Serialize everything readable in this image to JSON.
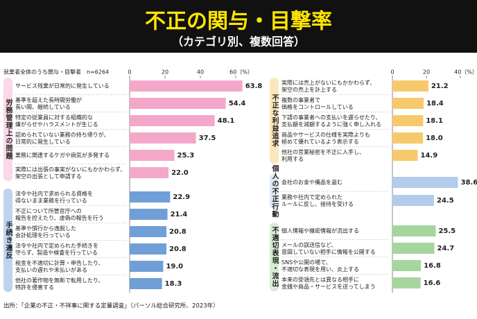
{
  "header": {
    "title": "不正の関与・目撃率",
    "subtitle": "（カテゴリ別、複数回答）"
  },
  "source": "出所：「企業の不正・不祥事に関する定量調査」（パーソル総合研究所、2023年）",
  "chart_data": [
    {
      "type": "bar",
      "orientation": "horizontal",
      "note": "就業者全体のうち関与・目撃者　n=6264",
      "xlim": [
        0,
        60
      ],
      "xticks": [
        0,
        20,
        40,
        {
          "value": 60,
          "label": "60（%）"
        }
      ],
      "groups": [
        {
          "name": "労務管理上の問題",
          "color": "#f4a8c9",
          "categories": [
            "サービス残業が日常的に発生している",
            "基準を超えた長時間労働が\n長い間、継続している",
            "特定の従業員に対する組織的な\n嫌がらせやハラスメントが生じる",
            "認められていない業務の持ち帰りが、\n日常的に発生している",
            "業務に関連するケガや病気が多発する",
            "実際には出張の事実がないにもかかわらず、\n架空の出張として申請する"
          ],
          "values": [
            63.8,
            54.4,
            48.1,
            37.5,
            25.3,
            22.0
          ],
          "value_labels": [
            "63.8",
            "54.4",
            "48.1",
            "37.5",
            "25.3",
            "22.0"
          ]
        },
        {
          "name": "手続き違反",
          "color": "#6f9fd6",
          "categories": [
            "法令や社内で求められる資格を\n得ないまま業務を行っている",
            "不正について所管官庁への\n報告を控えたり、虚偽の報告を行う",
            "基準や慣行から逸脱した\n会計処理を行っている",
            "法令や社内で定められた手続きを\n守らず、製造や検査を行っている",
            "税金を不適切に計算・申告したり、\n支払いの遅れや未払いがある",
            "他社の著作物を無断で転用したり、\n特許を侵害する"
          ],
          "values": [
            22.9,
            21.4,
            20.8,
            20.8,
            19.0,
            18.3
          ],
          "value_labels": [
            "22.9",
            "21.4",
            "20.8",
            "20.8",
            "19.0",
            "18.3"
          ]
        }
      ]
    },
    {
      "type": "bar",
      "orientation": "horizontal",
      "xlim": [
        0,
        40
      ],
      "xticks": [
        0,
        20,
        {
          "value": 40,
          "label": "40（%）"
        }
      ],
      "groups": [
        {
          "name": "不正な利益追求",
          "color": "#f8c96c",
          "categories": [
            "実際には売上がないにもかかわらず、\n架空の売上を計上する",
            "複数の事業者で\n価格をコントロールしている",
            "下請の事業者への支払いを遅らせたり、\n支払額を減額するように強く申し入れる",
            "商品やサービスの仕様を実際よりも\n極めて優れているよう表示する",
            "他社の営業秘密を不正に入手し、\n利用する"
          ],
          "values": [
            21.2,
            18.4,
            18.1,
            18.0,
            14.9
          ],
          "value_labels": [
            "21.2",
            "18.4",
            "18.1",
            "18.0",
            "14.9"
          ]
        },
        {
          "name": "個人の不正行動",
          "color": "#b5cbed",
          "categories": [
            "会社のお金や備品を盗む",
            "業務や社内で定められた\nルールに反し、接待を受ける"
          ],
          "values": [
            38.6,
            24.5
          ],
          "value_labels": [
            "38.6",
            "24.5"
          ]
        },
        {
          "name": "不適切表現・流出",
          "color": "#a6d69e",
          "categories": [
            "個人情報や機密情報が流出する",
            "メールの誤送信など、\n意図していない相手に情報を公開する",
            "SNSや公開の場で、\n不適切な表現を用い、炎上する",
            "本来の受領先とは異なる相手に\n金銭や商品・サービスを送ってしまう"
          ],
          "values": [
            25.5,
            24.7,
            16.8,
            16.6
          ],
          "value_labels": [
            "25.5",
            "24.7",
            "16.8",
            "16.6"
          ]
        }
      ]
    }
  ]
}
